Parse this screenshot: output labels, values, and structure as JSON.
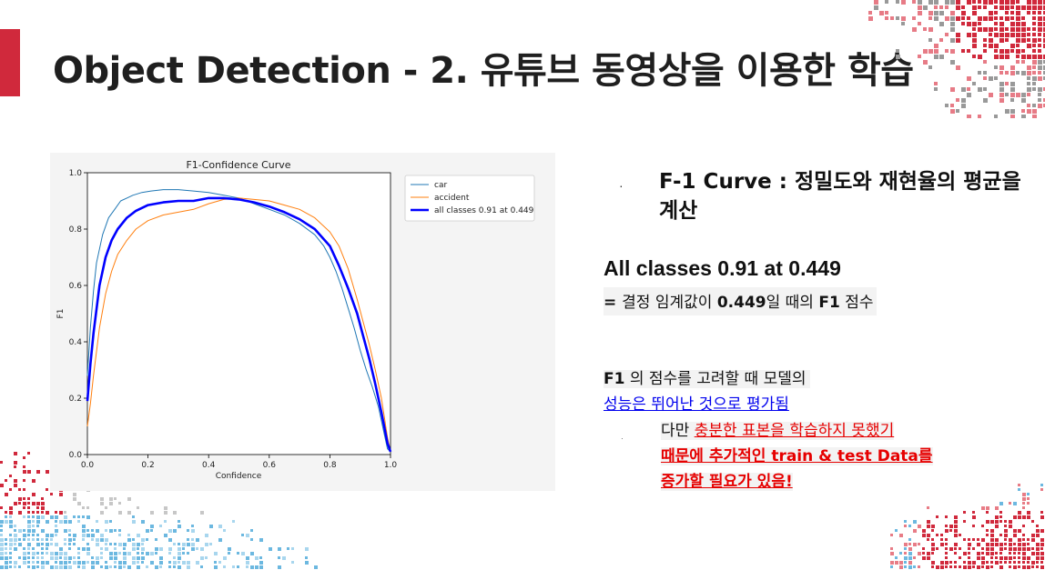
{
  "slide": {
    "title": "Object Detection - 2. 유튜브 동영상을 이용한 학습"
  },
  "right_panel": {
    "heading": "F-1 Curve : 정밀도와 재현율의 평균을 계산",
    "stat": "All classes 0.91 at 0.449",
    "stat_desc_prefix": "= ",
    "stat_desc_1": "결정 임계값이 ",
    "stat_desc_value": "0.449",
    "stat_desc_2": "일 때의 ",
    "stat_desc_metric": "F1",
    "stat_desc_3": " 점수",
    "eval_metric": "F1",
    "eval_line1": " 의 점수를 고려할 때 모델의",
    "eval_line2": "성능은 뛰어난 것으로 평가됨",
    "note_plain": "다만 ",
    "note_red_1": "충분한 표본을 학습하지 못했기",
    "note_red_2": "때문에 추가적인 train & test Data를",
    "note_red_3": "증가할 필요가 있음!"
  },
  "colors": {
    "accent_red": "#d0293c",
    "car": "#1f77b4",
    "accident": "#ff7f0e",
    "all_classes": "#0000ff",
    "link_blue": "#0000ee",
    "warn_red": "#e60000"
  },
  "chart_data": {
    "type": "line",
    "title": "F1-Confidence Curve",
    "xlabel": "Confidence",
    "ylabel": "F1",
    "xlim": [
      0,
      1
    ],
    "ylim": [
      0,
      1
    ],
    "xticks": [
      "0.0",
      "0.2",
      "0.4",
      "0.6",
      "0.8",
      "1.0"
    ],
    "yticks": [
      "0.0",
      "0.2",
      "0.4",
      "0.6",
      "0.8",
      "1.0"
    ],
    "legend_position": "upper right",
    "grid": false,
    "series": [
      {
        "name": "car",
        "color": "#1f77b4",
        "x": [
          0.0,
          0.01,
          0.02,
          0.03,
          0.05,
          0.07,
          0.09,
          0.11,
          0.13,
          0.15,
          0.18,
          0.21,
          0.25,
          0.3,
          0.35,
          0.4,
          0.45,
          0.5,
          0.55,
          0.6,
          0.65,
          0.7,
          0.75,
          0.78,
          0.8,
          0.82,
          0.84,
          0.86,
          0.88,
          0.9,
          0.92,
          0.94,
          0.96,
          0.98,
          0.99,
          1.0
        ],
        "y": [
          0.28,
          0.45,
          0.58,
          0.68,
          0.78,
          0.84,
          0.87,
          0.9,
          0.91,
          0.92,
          0.93,
          0.935,
          0.94,
          0.94,
          0.935,
          0.93,
          0.92,
          0.91,
          0.89,
          0.87,
          0.85,
          0.82,
          0.78,
          0.74,
          0.7,
          0.65,
          0.59,
          0.52,
          0.45,
          0.37,
          0.3,
          0.24,
          0.17,
          0.07,
          0.02,
          0.01
        ]
      },
      {
        "name": "accident",
        "color": "#ff7f0e",
        "x": [
          0.0,
          0.01,
          0.02,
          0.04,
          0.06,
          0.08,
          0.1,
          0.13,
          0.16,
          0.2,
          0.25,
          0.3,
          0.35,
          0.4,
          0.45,
          0.5,
          0.55,
          0.6,
          0.65,
          0.7,
          0.75,
          0.8,
          0.83,
          0.86,
          0.89,
          0.91,
          0.93,
          0.95,
          0.97,
          0.99,
          1.0
        ],
        "y": [
          0.1,
          0.18,
          0.28,
          0.45,
          0.57,
          0.65,
          0.71,
          0.76,
          0.8,
          0.83,
          0.85,
          0.86,
          0.87,
          0.89,
          0.905,
          0.91,
          0.905,
          0.9,
          0.885,
          0.87,
          0.84,
          0.79,
          0.74,
          0.66,
          0.55,
          0.47,
          0.39,
          0.3,
          0.2,
          0.06,
          0.01
        ]
      },
      {
        "name": "all classes 0.91 at 0.449",
        "color": "#0000ff",
        "x": [
          0.0,
          0.01,
          0.02,
          0.04,
          0.06,
          0.08,
          0.1,
          0.13,
          0.16,
          0.2,
          0.25,
          0.3,
          0.35,
          0.4,
          0.449,
          0.5,
          0.55,
          0.6,
          0.65,
          0.7,
          0.75,
          0.8,
          0.83,
          0.86,
          0.89,
          0.91,
          0.93,
          0.95,
          0.97,
          0.99,
          1.0
        ],
        "y": [
          0.19,
          0.32,
          0.43,
          0.6,
          0.7,
          0.76,
          0.8,
          0.84,
          0.865,
          0.885,
          0.895,
          0.9,
          0.9,
          0.91,
          0.91,
          0.905,
          0.895,
          0.88,
          0.86,
          0.835,
          0.8,
          0.74,
          0.67,
          0.59,
          0.5,
          0.42,
          0.34,
          0.25,
          0.15,
          0.04,
          0.01
        ]
      }
    ]
  }
}
